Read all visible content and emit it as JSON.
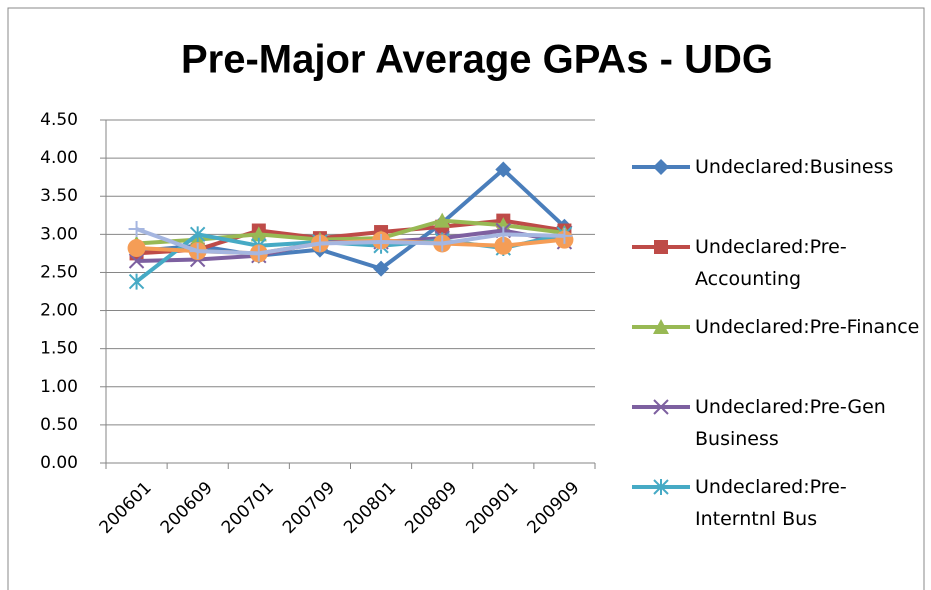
{
  "chart_data": {
    "type": "line",
    "title": "Pre-Major Average GPAs - UDG",
    "categories": [
      "200601",
      "200609",
      "200701",
      "200709",
      "200801",
      "200809",
      "200901",
      "200909"
    ],
    "series": [
      {
        "name": "Undeclared:Business",
        "color": "#4a7ebb",
        "marker": "diamond",
        "values": [
          2.78,
          2.85,
          2.72,
          2.8,
          2.55,
          3.15,
          3.85,
          3.1
        ]
      },
      {
        "name": "Undeclared:Pre-Accounting",
        "color": "#be4b48",
        "marker": "square",
        "values": [
          2.75,
          2.8,
          3.05,
          2.95,
          3.03,
          3.1,
          3.18,
          3.05
        ]
      },
      {
        "name": "Undeclared:Pre-Finance",
        "color": "#98b954",
        "marker": "triangle",
        "values": [
          2.88,
          2.93,
          3.0,
          2.93,
          2.95,
          3.18,
          3.12,
          3.02
        ]
      },
      {
        "name": "Undeclared:Pre-Gen Business",
        "color": "#7d60a0",
        "marker": "x",
        "values": [
          2.65,
          2.67,
          2.72,
          2.9,
          2.9,
          2.95,
          3.05,
          2.9
        ]
      },
      {
        "name": "Undeclared:Pre-Interntnl Bus",
        "color": "#46aac5",
        "marker": "star",
        "values": [
          2.38,
          3.0,
          2.85,
          2.9,
          2.85,
          2.92,
          2.82,
          3.0
        ]
      },
      {
        "color": "#f59d56",
        "marker": "circle",
        "values": [
          2.82,
          2.78,
          2.75,
          2.88,
          2.92,
          2.88,
          2.85,
          2.93
        ]
      },
      {
        "color": "#a5b6e0",
        "marker": "plus",
        "values": [
          3.07,
          2.78,
          2.75,
          2.88,
          2.9,
          2.88,
          3.0,
          2.98
        ]
      }
    ],
    "ylim": [
      0,
      4.5
    ],
    "yticks": [
      {
        "value": 0,
        "label": "0.00"
      },
      {
        "value": 0.5,
        "label": "0.50"
      },
      {
        "value": 1,
        "label": "1.00"
      },
      {
        "value": 1.5,
        "label": "1.50"
      },
      {
        "value": 2,
        "label": "2.00"
      },
      {
        "value": 2.5,
        "label": "2.50"
      },
      {
        "value": 3,
        "label": "3.00"
      },
      {
        "value": 3.5,
        "label": "3.50"
      },
      {
        "value": 4,
        "label": "4.00"
      },
      {
        "value": 4.5,
        "label": "4.50"
      }
    ],
    "grid": true
  }
}
